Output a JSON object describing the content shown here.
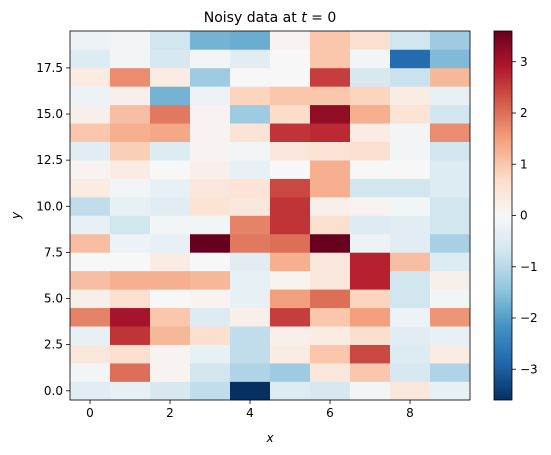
{
  "chart_data": {
    "type": "heatmap",
    "title": "Noisy data at t = 0",
    "title_prefix": "Noisy data at ",
    "title_var": "t",
    "title_suffix": " = 0",
    "xlabel": "x",
    "ylabel": "y",
    "x_ticks": [
      0,
      2,
      4,
      6,
      8
    ],
    "y_ticks": [
      0.0,
      2.5,
      5.0,
      7.5,
      10.0,
      12.5,
      15.0,
      17.5
    ],
    "y_tick_labels": [
      "0.0",
      "2.5",
      "5.0",
      "7.5",
      "10.0",
      "12.5",
      "15.0",
      "17.5"
    ],
    "xlim": [
      -0.5,
      9.5
    ],
    "ylim": [
      -0.5,
      19.5
    ],
    "colormap": "RdBu_r",
    "vmin": -3.6,
    "vmax": 3.6,
    "colorbar_ticks": [
      -3,
      -2,
      -1,
      0,
      1,
      2,
      3
    ],
    "colorbar_tick_labels": [
      "−3",
      "−2",
      "−1",
      "0",
      "1",
      "2",
      "3"
    ],
    "grid": false,
    "rows_y0_to_y19": [
      [
        -0.4,
        -0.3,
        -0.6,
        -0.9,
        -3.6,
        -0.5,
        -0.6,
        -0.1,
        0.4,
        -0.3
      ],
      [
        -0.1,
        2.0,
        0.1,
        -0.7,
        -1.1,
        -1.3,
        0.4,
        1.0,
        -0.6,
        -1.1
      ],
      [
        0.4,
        0.6,
        0.1,
        -0.3,
        -0.9,
        0.3,
        1.0,
        2.4,
        -0.5,
        0.3
      ],
      [
        -0.3,
        2.6,
        1.2,
        0.6,
        -0.9,
        0.2,
        0.3,
        0.6,
        -0.4,
        -0.3
      ],
      [
        1.8,
        3.0,
        1.0,
        -0.5,
        0.2,
        2.5,
        1.0,
        1.5,
        -0.2,
        1.6
      ],
      [
        0.2,
        0.6,
        0.0,
        0.1,
        -0.3,
        1.5,
        2.0,
        0.8,
        -0.7,
        -0.1
      ],
      [
        1.1,
        1.3,
        1.3,
        1.2,
        -0.3,
        0.1,
        0.4,
        2.8,
        -0.7,
        0.2
      ],
      [
        0.0,
        0.0,
        0.3,
        0.0,
        -0.4,
        1.3,
        0.4,
        2.8,
        1.1,
        -0.5
      ],
      [
        1.1,
        -0.2,
        -0.3,
        3.6,
        1.9,
        2.0,
        3.6,
        -0.2,
        -0.4,
        -1.2
      ],
      [
        -0.3,
        -0.7,
        -0.1,
        -0.1,
        1.8,
        2.6,
        0.6,
        -0.5,
        -0.4,
        -0.7
      ],
      [
        -0.9,
        -0.3,
        -0.4,
        0.5,
        0.4,
        2.6,
        0.2,
        0.1,
        -0.1,
        -0.7
      ],
      [
        0.3,
        -0.1,
        -0.3,
        0.4,
        0.5,
        2.4,
        1.3,
        -0.7,
        -0.7,
        -0.5
      ],
      [
        0.1,
        0.3,
        0.0,
        0.2,
        -0.3,
        0.0,
        1.3,
        0.0,
        0.0,
        -0.5
      ],
      [
        -0.4,
        0.9,
        -0.5,
        0.1,
        -0.1,
        0.4,
        0.5,
        0.6,
        -0.1,
        -0.7
      ],
      [
        1.0,
        1.3,
        1.4,
        0.1,
        0.5,
        2.6,
        2.7,
        0.3,
        -0.1,
        1.7
      ],
      [
        0.2,
        1.1,
        1.9,
        0.1,
        -1.3,
        0.7,
        3.2,
        1.3,
        0.5,
        -0.7
      ],
      [
        -0.2,
        0.2,
        -1.7,
        -0.2,
        0.8,
        1.0,
        1.0,
        0.8,
        0.3,
        -0.3
      ],
      [
        0.3,
        1.7,
        0.3,
        -1.3,
        0.0,
        0.0,
        2.5,
        -0.6,
        -0.8,
        1.2
      ],
      [
        -0.5,
        -0.1,
        -0.6,
        -0.1,
        -0.4,
        0.0,
        1.0,
        -0.1,
        -2.8,
        -1.6
      ],
      [
        -0.2,
        -0.1,
        -0.7,
        -1.7,
        -1.8,
        0.1,
        1.0,
        0.6,
        -0.7,
        -1.3
      ]
    ]
  }
}
